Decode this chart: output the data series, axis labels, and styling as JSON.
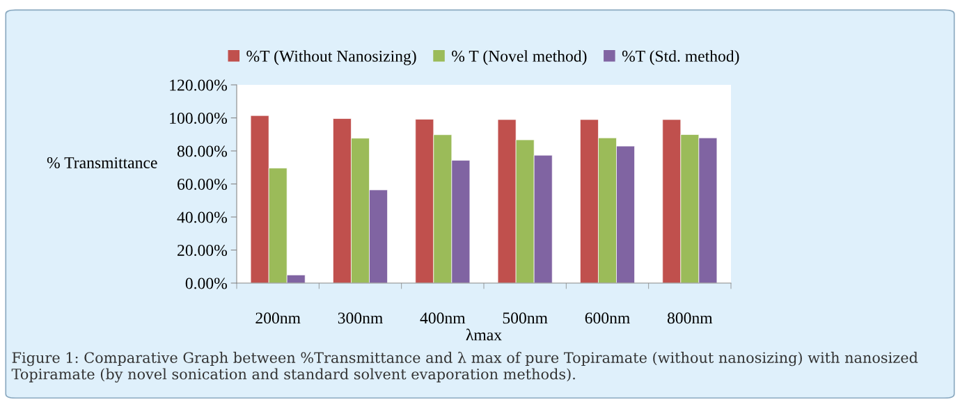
{
  "chart_data": {
    "type": "bar",
    "categories": [
      "200nm",
      "300nm",
      "400nm",
      "500nm",
      "600nm",
      "800nm"
    ],
    "series": [
      {
        "name": "%T (Without Nanosizing)",
        "color": "#c0504d",
        "values": [
          101.4,
          99.6,
          99.2,
          99.0,
          99.0,
          99.0
        ]
      },
      {
        "name": "% T (Novel method)",
        "color": "#9bbb59",
        "values": [
          69.6,
          87.7,
          89.8,
          86.7,
          87.9,
          89.9
        ]
      },
      {
        "name": "%T (Std. method)",
        "color": "#8064a2",
        "values": [
          4.9,
          56.4,
          74.3,
          77.4,
          82.9,
          87.9
        ]
      }
    ],
    "ylabel": "% Transmittance",
    "xlabel": "λmax",
    "ylim": [
      0,
      120
    ],
    "yticks": [
      {
        "value": 0,
        "label": "0.00%"
      },
      {
        "value": 20,
        "label": "20.00%"
      },
      {
        "value": 40,
        "label": "40.00%"
      },
      {
        "value": 60,
        "label": "60.00%"
      },
      {
        "value": 80,
        "label": "80.00%"
      },
      {
        "value": 100,
        "label": "100.00%"
      },
      {
        "value": 120,
        "label": "120.00%"
      }
    ],
    "grid": false,
    "legend": "top",
    "annotations": [
      "Figure 1: Comparative Graph between %Transmittance and λ max of pure Topiramate (without nanosizing) with nanosized Topiramate (by novel sonication and standard solvent evaporation methods)."
    ]
  }
}
